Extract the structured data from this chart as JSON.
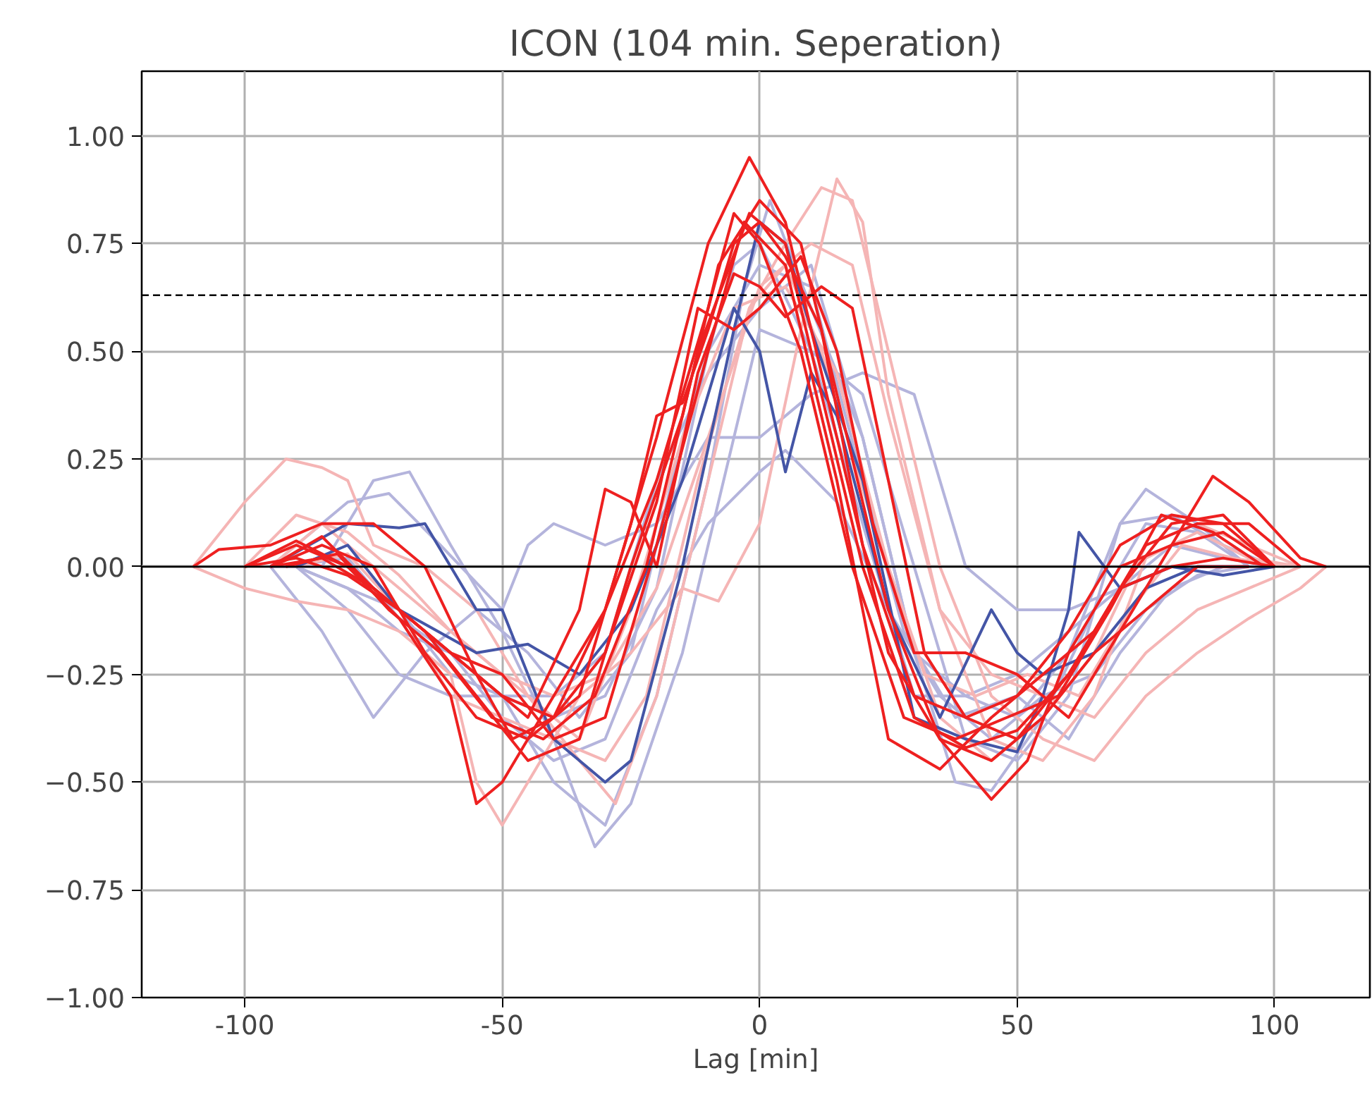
{
  "chart_data": {
    "type": "line",
    "title": "ICON (104 min. Seperation)",
    "xlabel": "Lag [min]",
    "xlim": [
      -120,
      118.5
    ],
    "ylim": [
      -1.0,
      1.15
    ],
    "xticks": [
      -100,
      -50,
      0,
      50,
      100
    ],
    "yticks": [
      {
        "value": -1.0,
        "label": "−1.00"
      },
      {
        "value": -0.75,
        "label": "−0.75"
      },
      {
        "value": -0.5,
        "label": "−0.50"
      },
      {
        "value": -0.25,
        "label": "−0.25"
      },
      {
        "value": 0,
        "label": "0.00"
      },
      {
        "value": 0.25,
        "label": "0.25"
      },
      {
        "value": 0.5,
        "label": "0.50"
      },
      {
        "value": 0.75,
        "label": "0.75"
      },
      {
        "value": 1.0,
        "label": "1.00"
      }
    ],
    "grid": true,
    "line_style": "solid",
    "ref_lines": [
      {
        "axis": "y",
        "value": 0,
        "label": null,
        "color": "#000000",
        "line_style": "solid"
      },
      {
        "axis": "y",
        "value": 0.63,
        "label": null,
        "color": "#000000",
        "line_style": "dashed"
      }
    ],
    "series": [
      {
        "color": "#b4b4dc",
        "x": [
          -95,
          -85,
          -75,
          -68,
          -60,
          -50,
          -40,
          -32,
          -25,
          -15,
          -5,
          0,
          10,
          20,
          30,
          40,
          50,
          60,
          70,
          75,
          85,
          95
        ],
        "values": [
          0,
          0.0,
          0.2,
          0.22,
          0.05,
          -0.15,
          -0.4,
          -0.65,
          -0.55,
          -0.2,
          0.3,
          0.55,
          0.5,
          0.4,
          0.0,
          -0.4,
          -0.45,
          -0.3,
          0.1,
          0.18,
          0.1,
          0
        ]
      },
      {
        "color": "#b4b4dc",
        "x": [
          -90,
          -80,
          -70,
          -60,
          -50,
          -40,
          -30,
          -20,
          -10,
          -3,
          2,
          10,
          20,
          30,
          38,
          45,
          55,
          65,
          75,
          85,
          95
        ],
        "values": [
          0,
          -0.1,
          -0.25,
          -0.3,
          -0.3,
          -0.5,
          -0.6,
          -0.3,
          0.2,
          0.65,
          0.85,
          0.6,
          0.3,
          -0.2,
          -0.5,
          -0.52,
          -0.35,
          -0.1,
          0.1,
          0.08,
          0
        ]
      },
      {
        "color": "#b4b4dc",
        "x": [
          -95,
          -80,
          -72,
          -62,
          -50,
          -45,
          -40,
          -30,
          -20,
          -10,
          0,
          10,
          20,
          30,
          35,
          40,
          50,
          60,
          70,
          80,
          90,
          100
        ],
        "values": [
          0,
          0.15,
          0.17,
          0.05,
          -0.1,
          0.05,
          0.1,
          0.05,
          0.1,
          0.3,
          0.3,
          0.4,
          0.45,
          0.4,
          0.2,
          0.0,
          -0.1,
          -0.1,
          -0.05,
          0.05,
          0.02,
          0
        ]
      },
      {
        "color": "#b4b4dc",
        "x": [
          -90,
          -80,
          -70,
          -60,
          -50,
          -40,
          -30,
          -20,
          -10,
          0,
          5,
          15,
          25,
          35,
          45,
          55,
          65,
          75,
          85,
          95
        ],
        "values": [
          0,
          -0.05,
          -0.15,
          -0.2,
          -0.35,
          -0.45,
          -0.4,
          -0.1,
          0.1,
          0.22,
          0.27,
          0.15,
          -0.1,
          -0.3,
          -0.4,
          -0.3,
          -0.25,
          -0.1,
          -0.02,
          0
        ]
      },
      {
        "color": "#b4b4dc",
        "x": [
          -90,
          -80,
          -70,
          -60,
          -50,
          -40,
          -30,
          -20,
          -10,
          0,
          10,
          20,
          30,
          40,
          50,
          60,
          70,
          80,
          90,
          100
        ],
        "values": [
          0,
          -0.05,
          -0.1,
          -0.25,
          -0.3,
          -0.3,
          -0.2,
          0.2,
          0.45,
          0.6,
          0.7,
          0.3,
          -0.2,
          -0.3,
          -0.35,
          -0.2,
          0.1,
          0.12,
          0.05,
          0
        ]
      },
      {
        "color": "#b4b4dc",
        "x": [
          -95,
          -85,
          -75,
          -65,
          -55,
          -45,
          -35,
          -25,
          -15,
          -5,
          0,
          10,
          20,
          30,
          40,
          50,
          60,
          70,
          80,
          90
        ],
        "values": [
          0,
          -0.15,
          -0.35,
          -0.2,
          -0.1,
          -0.2,
          -0.35,
          -0.2,
          0.3,
          0.7,
          0.75,
          0.5,
          0.1,
          -0.3,
          -0.3,
          -0.25,
          -0.15,
          -0.05,
          0.0,
          0
        ]
      },
      {
        "color": "#b4b4dc",
        "x": [
          -92,
          -80,
          -70,
          -60,
          -50,
          -40,
          -30,
          -20,
          -10,
          0,
          10,
          20,
          28,
          38,
          50,
          60,
          70,
          80,
          90,
          100
        ],
        "values": [
          0,
          0.02,
          -0.12,
          -0.2,
          -0.3,
          -0.35,
          -0.3,
          -0.05,
          0.5,
          0.7,
          0.65,
          0.2,
          -0.15,
          -0.35,
          -0.3,
          -0.4,
          -0.2,
          -0.05,
          0.0,
          0
        ]
      },
      {
        "color": "#f5b5b5",
        "x": [
          -110,
          -100,
          -92,
          -85,
          -80,
          -75,
          -65,
          -55,
          -45,
          -35,
          -28,
          -20,
          -10,
          -2,
          5,
          12,
          18,
          25,
          35,
          45,
          55,
          65,
          75,
          85,
          95,
          105,
          110
        ],
        "values": [
          0,
          0.15,
          0.25,
          0.23,
          0.2,
          0.05,
          0.0,
          -0.1,
          -0.3,
          -0.45,
          -0.55,
          -0.3,
          0.2,
          0.6,
          0.75,
          0.88,
          0.85,
          0.5,
          0.0,
          -0.3,
          -0.4,
          -0.45,
          -0.3,
          -0.2,
          -0.12,
          -0.05,
          0
        ]
      },
      {
        "color": "#f5b5b5",
        "x": [
          -110,
          -100,
          -90,
          -80,
          -70,
          -60,
          -55,
          -50,
          -45,
          -35,
          -25,
          -15,
          -8,
          0,
          8,
          15,
          20,
          25,
          35,
          45,
          55,
          65,
          75,
          85,
          95,
          105
        ],
        "values": [
          0,
          -0.05,
          -0.08,
          -0.1,
          -0.15,
          -0.25,
          -0.5,
          -0.6,
          -0.5,
          -0.3,
          -0.2,
          -0.05,
          -0.08,
          0.1,
          0.55,
          0.9,
          0.8,
          0.4,
          -0.1,
          -0.25,
          -0.3,
          -0.35,
          -0.2,
          -0.1,
          -0.05,
          0
        ]
      },
      {
        "color": "#f5b5b5",
        "x": [
          -100,
          -90,
          -80,
          -70,
          -60,
          -50,
          -40,
          -30,
          -20,
          -10,
          0,
          10,
          18,
          25,
          35,
          45,
          55,
          65,
          75,
          85,
          95,
          105
        ],
        "values": [
          0,
          0.12,
          0.08,
          -0.02,
          -0.15,
          -0.25,
          -0.3,
          -0.25,
          -0.05,
          0.3,
          0.65,
          0.75,
          0.7,
          0.35,
          -0.1,
          -0.4,
          -0.45,
          -0.3,
          0.02,
          0.08,
          0.02,
          0
        ]
      },
      {
        "color": "#f5b5b5",
        "x": [
          -95,
          -85,
          -75,
          -65,
          -55,
          -45,
          -35,
          -25,
          -15,
          -5,
          5,
          15,
          25,
          35,
          45,
          55,
          65,
          75,
          85,
          95,
          105
        ],
        "values": [
          0,
          0.1,
          0.0,
          -0.1,
          -0.2,
          -0.3,
          -0.4,
          -0.1,
          0.3,
          0.6,
          0.65,
          0.45,
          0.0,
          -0.35,
          -0.45,
          -0.35,
          -0.2,
          0.05,
          0.1,
          0.05,
          0
        ]
      },
      {
        "color": "#f5b5b5",
        "x": [
          -90,
          -80,
          -70,
          -60,
          -50,
          -40,
          -30,
          -22,
          -12,
          -2,
          5,
          12,
          22,
          32,
          42,
          52,
          62,
          72,
          82,
          92,
          102
        ],
        "values": [
          0,
          0.03,
          -0.1,
          -0.3,
          -0.35,
          -0.4,
          -0.45,
          -0.3,
          0.2,
          0.6,
          0.7,
          0.5,
          0.1,
          -0.25,
          -0.3,
          -0.25,
          -0.3,
          -0.1,
          0.05,
          0.02,
          0
        ]
      },
      {
        "color": "#4455a6",
        "x": [
          -95,
          -80,
          -70,
          -65,
          -60,
          -55,
          -50,
          -40,
          -30,
          -25,
          -15,
          -5,
          0,
          5,
          10,
          20,
          30,
          40,
          50,
          55,
          60,
          62,
          70,
          80,
          90,
          100
        ],
        "values": [
          0,
          0.1,
          0.09,
          0.1,
          0.0,
          -0.1,
          -0.1,
          -0.4,
          -0.5,
          -0.45,
          0.0,
          0.55,
          0.8,
          0.75,
          0.55,
          0.2,
          -0.35,
          -0.4,
          -0.43,
          -0.3,
          -0.1,
          0.08,
          -0.05,
          0.0,
          -0.02,
          0
        ]
      },
      {
        "color": "#4455a6",
        "x": [
          -90,
          -80,
          -70,
          -55,
          -45,
          -35,
          -25,
          -15,
          -5,
          0,
          5,
          10,
          15,
          25,
          35,
          45,
          50,
          55,
          65,
          75,
          85,
          95
        ],
        "values": [
          0,
          0.05,
          -0.1,
          -0.2,
          -0.18,
          -0.25,
          -0.1,
          0.2,
          0.6,
          0.5,
          0.22,
          0.45,
          0.35,
          -0.1,
          -0.35,
          -0.1,
          -0.2,
          -0.25,
          -0.2,
          -0.05,
          0.0,
          0
        ]
      },
      {
        "color": "#ee2020",
        "x": [
          -110,
          -105,
          -95,
          -85,
          -75,
          -65,
          -55,
          -48,
          -40,
          -30,
          -20,
          -10,
          -2,
          5,
          15,
          25,
          35,
          45,
          52,
          60,
          70,
          80,
          88,
          95,
          105,
          110
        ],
        "values": [
          0,
          0.04,
          0.05,
          0.1,
          0.1,
          0.0,
          -0.25,
          -0.4,
          -0.35,
          -0.1,
          0.3,
          0.75,
          0.95,
          0.8,
          0.3,
          -0.2,
          -0.4,
          -0.54,
          -0.45,
          -0.2,
          0.0,
          0.05,
          0.21,
          0.15,
          0.02,
          0
        ]
      },
      {
        "color": "#ee2020",
        "x": [
          -100,
          -90,
          -80,
          -70,
          -60,
          -55,
          -50,
          -40,
          -30,
          -20,
          -10,
          -5,
          0,
          8,
          18,
          28,
          38,
          48,
          58,
          68,
          78,
          88,
          98
        ],
        "values": [
          0,
          0.06,
          0.0,
          -0.12,
          -0.3,
          -0.55,
          -0.5,
          -0.3,
          -0.1,
          0.2,
          0.6,
          0.82,
          0.75,
          0.5,
          0.0,
          -0.35,
          -0.4,
          -0.35,
          -0.3,
          -0.1,
          0.12,
          0.08,
          0
        ]
      },
      {
        "color": "#ee2020",
        "x": [
          -95,
          -85,
          -75,
          -65,
          -55,
          -45,
          -35,
          -25,
          -20,
          -15,
          -10,
          -5,
          0,
          5,
          12,
          20,
          30,
          40,
          50,
          60,
          70,
          80,
          90,
          100
        ],
        "values": [
          0,
          0.05,
          0.0,
          -0.2,
          -0.35,
          -0.4,
          -0.3,
          0.1,
          0.35,
          0.38,
          0.55,
          0.75,
          0.8,
          0.72,
          0.55,
          0.05,
          -0.3,
          -0.35,
          -0.3,
          -0.15,
          0.05,
          0.12,
          0.1,
          0
        ]
      },
      {
        "color": "#ee2020",
        "x": [
          -95,
          -85,
          -75,
          -65,
          -55,
          -45,
          -35,
          -30,
          -25,
          -20,
          -12,
          -5,
          0,
          5,
          12,
          18,
          25,
          32,
          40,
          50,
          60,
          70,
          80,
          90,
          100
        ],
        "values": [
          0,
          0.07,
          -0.05,
          -0.15,
          -0.25,
          -0.35,
          -0.1,
          0.18,
          0.15,
          0.0,
          0.45,
          0.68,
          0.65,
          0.58,
          0.65,
          0.6,
          0.2,
          -0.2,
          -0.35,
          -0.4,
          -0.25,
          -0.05,
          0.0,
          0.02,
          0
        ]
      },
      {
        "color": "#ee2020",
        "x": [
          -100,
          -90,
          -80,
          -70,
          -60,
          -50,
          -40,
          -30,
          -20,
          -10,
          -3,
          5,
          15,
          25,
          35,
          45,
          55,
          65,
          75,
          85,
          95,
          105
        ],
        "values": [
          0,
          0.02,
          -0.02,
          -0.1,
          -0.2,
          -0.25,
          -0.4,
          -0.35,
          0.05,
          0.5,
          0.8,
          0.7,
          0.2,
          -0.4,
          -0.47,
          -0.35,
          -0.25,
          -0.15,
          0.05,
          0.1,
          0.1,
          0
        ]
      },
      {
        "color": "#ee2020",
        "x": [
          -95,
          -85,
          -75,
          -65,
          -55,
          -45,
          -35,
          -25,
          -15,
          -8,
          0,
          8,
          15,
          25,
          35,
          45,
          55,
          65,
          75,
          85,
          95
        ],
        "values": [
          0,
          0.02,
          -0.05,
          -0.15,
          -0.3,
          -0.45,
          -0.4,
          0.0,
          0.35,
          0.7,
          0.85,
          0.75,
          0.4,
          -0.1,
          -0.4,
          -0.45,
          -0.35,
          -0.2,
          -0.1,
          0.0,
          0
        ]
      },
      {
        "color": "#ee2020",
        "x": [
          -100,
          -90,
          -80,
          -70,
          -60,
          -50,
          -40,
          -30,
          -20,
          -12,
          -5,
          0,
          8,
          15,
          22,
          30,
          40,
          50,
          60,
          70,
          80,
          90,
          100
        ],
        "values": [
          0,
          0.05,
          0.0,
          -0.1,
          -0.2,
          -0.3,
          -0.35,
          -0.2,
          0.15,
          0.6,
          0.55,
          0.6,
          0.72,
          0.5,
          0.1,
          -0.2,
          -0.2,
          -0.25,
          -0.35,
          -0.15,
          0.05,
          0.08,
          0
        ]
      },
      {
        "color": "#ee2020",
        "x": [
          -92,
          -82,
          -72,
          -62,
          -52,
          -42,
          -32,
          -22,
          -12,
          -2,
          5,
          12,
          20,
          30,
          40,
          50,
          60,
          70,
          80,
          90,
          100
        ],
        "values": [
          0,
          0.03,
          -0.1,
          -0.2,
          -0.35,
          -0.4,
          -0.3,
          0.0,
          0.5,
          0.82,
          0.75,
          0.4,
          0.0,
          -0.35,
          -0.42,
          -0.38,
          -0.25,
          -0.05,
          0.1,
          0.12,
          0
        ]
      }
    ]
  }
}
